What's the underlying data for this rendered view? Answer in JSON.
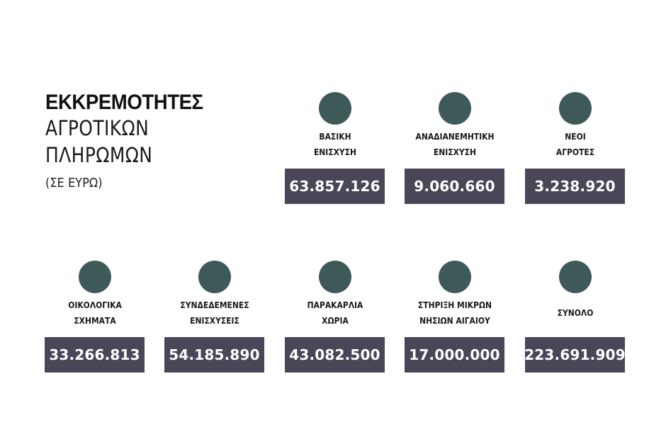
{
  "title": {
    "line1": "ΕΚΚΡΕΜΟΤΗΤΕΣ",
    "line2": "ΑΓΡΟΤΙΚΩΝ",
    "line3": "ΠΛΗΡΩΜΩΝ",
    "unit": "(ΣΕ ΕΥΡΩ)"
  },
  "items": [
    {
      "label1": "ΒΑΣΙΚΗ",
      "label2": "ΕΝΙΣΧΥΣΗ",
      "value": "63.857.126"
    },
    {
      "label1": "ΑΝΑΔΙΑΝΕΜΗΤΙΚΗ",
      "label2": "ΕΝΙΣΧΥΣΗ",
      "value": "9.060.660"
    },
    {
      "label1": "ΝΕΟΙ",
      "label2": "ΑΓΡΟΤΕΣ",
      "value": "3.238.920"
    },
    {
      "label1": "ΟΙΚΟΛΟΓΙΚΑ",
      "label2": "ΣΧΗΜΑΤΑ",
      "value": "33.266.813"
    },
    {
      "label1": "ΣΥΝΔΕΔΕΜΕΝΕΣ",
      "label2": "ΕΝΙΣΧΥΣΕΙΣ",
      "value": "54.185.890"
    },
    {
      "label1": "ΠΑΡΑΚΑΡΛΙΑ",
      "label2": "ΧΩΡΙΑ",
      "value": "43.082.500"
    },
    {
      "label1": "ΣΤΗΡΙΞΗ ΜΙΚΡΩΝ",
      "label2": "ΝΗΣΙΩΝ ΑΙΓΑΙΟΥ",
      "value": "17.000.000"
    },
    {
      "label1": "ΣΥΝΟΛΟ",
      "label2": "",
      "value": "223.691.909"
    }
  ],
  "colors": {
    "dot": "#3e5a58",
    "value_box": "#4b4657"
  }
}
